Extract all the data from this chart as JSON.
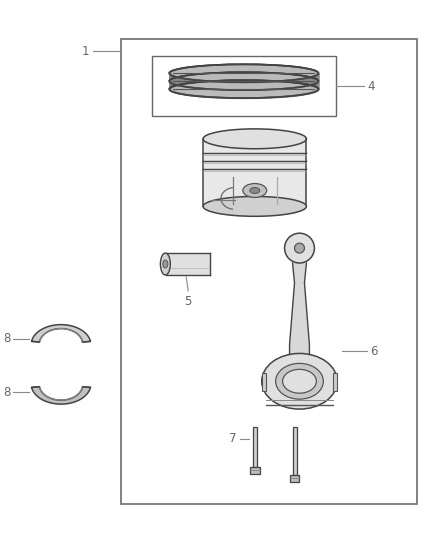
{
  "bg_color": "#ffffff",
  "line_color": "#444444",
  "light_gray": "#cccccc",
  "mid_gray": "#888888",
  "dark_gray": "#444444",
  "fig_width": 4.38,
  "fig_height": 5.33,
  "dpi": 100,
  "label_fontsize": 8.5,
  "label_color": "#666666",
  "label_1": "1",
  "label_4": "4",
  "label_5": "5",
  "label_6": "6",
  "label_7": "7",
  "label_8a": "8",
  "label_8b": "8"
}
